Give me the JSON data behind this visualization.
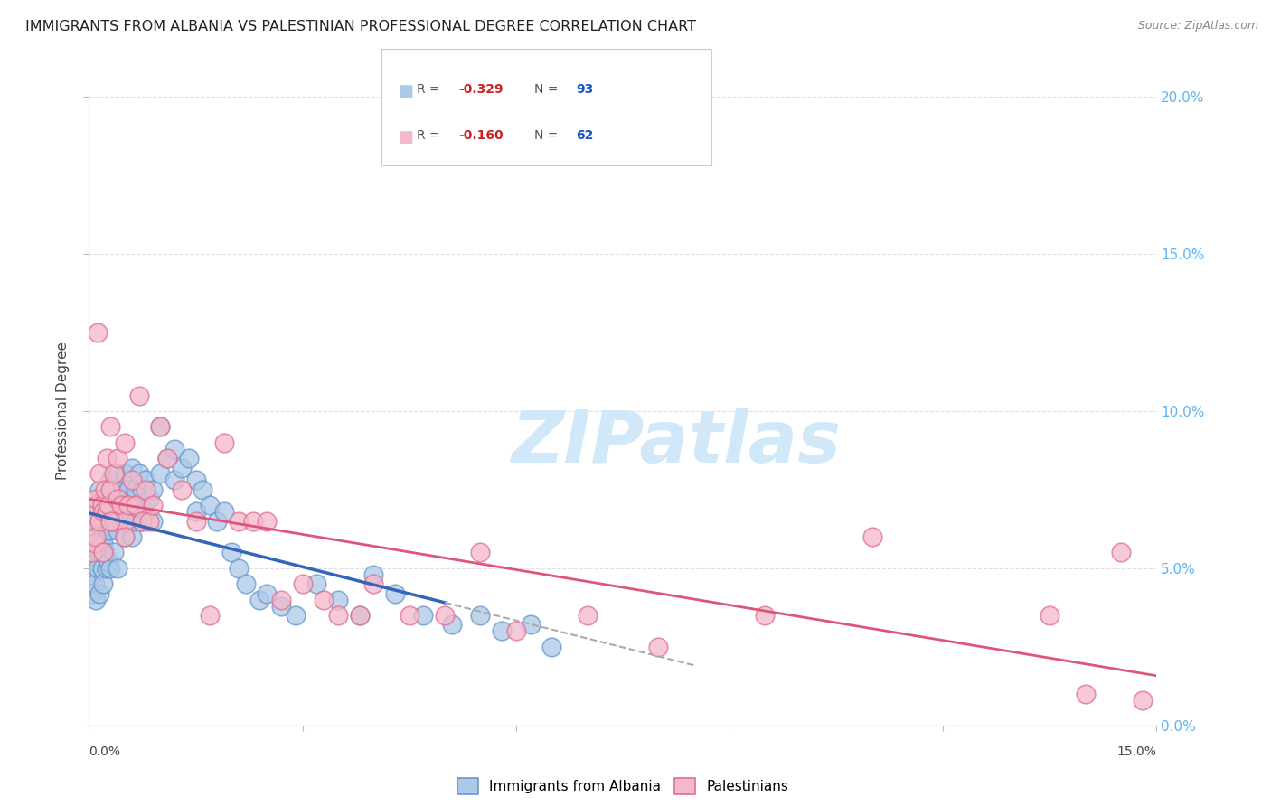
{
  "title": "IMMIGRANTS FROM ALBANIA VS PALESTINIAN PROFESSIONAL DEGREE CORRELATION CHART",
  "source": "Source: ZipAtlas.com",
  "ylabel": "Professional Degree",
  "xlim": [
    0.0,
    15.0
  ],
  "ylim": [
    0.0,
    20.0
  ],
  "yticks_right": [
    0.0,
    5.0,
    10.0,
    15.0,
    20.0
  ],
  "albania_color": "#adc9e8",
  "albania_edge": "#6699cc",
  "palestine_color": "#f5b8cb",
  "palestine_edge": "#e07090",
  "albania_R": -0.329,
  "albania_N": 93,
  "palestine_R": -0.16,
  "palestine_N": 62,
  "watermark": "ZIPatlas",
  "watermark_color": "#d0e8f8",
  "albania_line_color": "#3366bb",
  "palestine_line_color": "#dd5577",
  "dash_color": "#aaaaaa",
  "albania_points_x": [
    0.05,
    0.05,
    0.05,
    0.05,
    0.08,
    0.08,
    0.08,
    0.1,
    0.1,
    0.1,
    0.1,
    0.12,
    0.12,
    0.15,
    0.15,
    0.15,
    0.15,
    0.18,
    0.18,
    0.2,
    0.2,
    0.2,
    0.2,
    0.22,
    0.22,
    0.25,
    0.25,
    0.25,
    0.28,
    0.28,
    0.3,
    0.3,
    0.3,
    0.3,
    0.35,
    0.35,
    0.35,
    0.4,
    0.4,
    0.4,
    0.4,
    0.45,
    0.45,
    0.5,
    0.5,
    0.5,
    0.55,
    0.55,
    0.6,
    0.6,
    0.6,
    0.65,
    0.65,
    0.7,
    0.7,
    0.75,
    0.75,
    0.8,
    0.8,
    0.85,
    0.9,
    0.9,
    1.0,
    1.0,
    1.1,
    1.2,
    1.2,
    1.3,
    1.4,
    1.5,
    1.5,
    1.6,
    1.7,
    1.8,
    1.9,
    2.0,
    2.1,
    2.2,
    2.4,
    2.5,
    2.7,
    2.9,
    3.2,
    3.5,
    3.8,
    4.0,
    4.3,
    4.7,
    5.1,
    5.5,
    5.8,
    6.2,
    6.5
  ],
  "albania_points_y": [
    6.2,
    5.5,
    4.8,
    4.2,
    6.5,
    5.8,
    4.5,
    7.0,
    6.0,
    5.2,
    4.0,
    6.8,
    5.0,
    7.5,
    6.5,
    5.5,
    4.2,
    6.0,
    5.0,
    7.2,
    6.5,
    5.8,
    4.5,
    6.8,
    5.5,
    7.0,
    6.2,
    5.0,
    6.5,
    5.2,
    7.8,
    7.0,
    6.2,
    5.0,
    7.5,
    6.5,
    5.5,
    8.0,
    7.0,
    6.2,
    5.0,
    7.5,
    6.5,
    8.0,
    7.2,
    6.0,
    7.5,
    6.5,
    8.2,
    7.2,
    6.0,
    7.5,
    6.5,
    8.0,
    7.0,
    7.5,
    6.5,
    7.8,
    6.8,
    7.2,
    7.5,
    6.5,
    9.5,
    8.0,
    8.5,
    8.8,
    7.8,
    8.2,
    8.5,
    7.8,
    6.8,
    7.5,
    7.0,
    6.5,
    6.8,
    5.5,
    5.0,
    4.5,
    4.0,
    4.2,
    3.8,
    3.5,
    4.5,
    4.0,
    3.5,
    4.8,
    4.2,
    3.5,
    3.2,
    3.5,
    3.0,
    3.2,
    2.5
  ],
  "palestine_points_x": [
    0.05,
    0.05,
    0.08,
    0.08,
    0.1,
    0.1,
    0.12,
    0.15,
    0.15,
    0.18,
    0.2,
    0.2,
    0.22,
    0.25,
    0.25,
    0.28,
    0.3,
    0.3,
    0.35,
    0.35,
    0.4,
    0.4,
    0.45,
    0.5,
    0.5,
    0.55,
    0.6,
    0.65,
    0.7,
    0.75,
    0.8,
    0.85,
    0.9,
    1.0,
    1.1,
    1.3,
    1.5,
    1.7,
    1.9,
    2.1,
    2.3,
    2.5,
    2.7,
    3.0,
    3.3,
    3.5,
    3.8,
    4.0,
    4.5,
    5.0,
    5.5,
    6.0,
    7.0,
    8.0,
    9.5,
    11.0,
    13.5,
    14.0,
    14.5,
    14.8,
    0.3,
    0.5
  ],
  "palestine_points_y": [
    6.5,
    5.5,
    7.0,
    5.8,
    7.2,
    6.0,
    12.5,
    8.0,
    6.5,
    7.0,
    6.8,
    5.5,
    7.5,
    8.5,
    6.8,
    7.0,
    9.5,
    7.5,
    8.0,
    6.5,
    8.5,
    7.2,
    7.0,
    9.0,
    6.5,
    7.0,
    7.8,
    7.0,
    10.5,
    6.5,
    7.5,
    6.5,
    7.0,
    9.5,
    8.5,
    7.5,
    6.5,
    3.5,
    9.0,
    6.5,
    6.5,
    6.5,
    4.0,
    4.5,
    4.0,
    3.5,
    3.5,
    4.5,
    3.5,
    3.5,
    5.5,
    3.0,
    3.5,
    2.5,
    3.5,
    6.0,
    3.5,
    1.0,
    5.5,
    0.8,
    6.5,
    6.0
  ],
  "background_color": "#ffffff",
  "grid_color": "#e0e0e0"
}
